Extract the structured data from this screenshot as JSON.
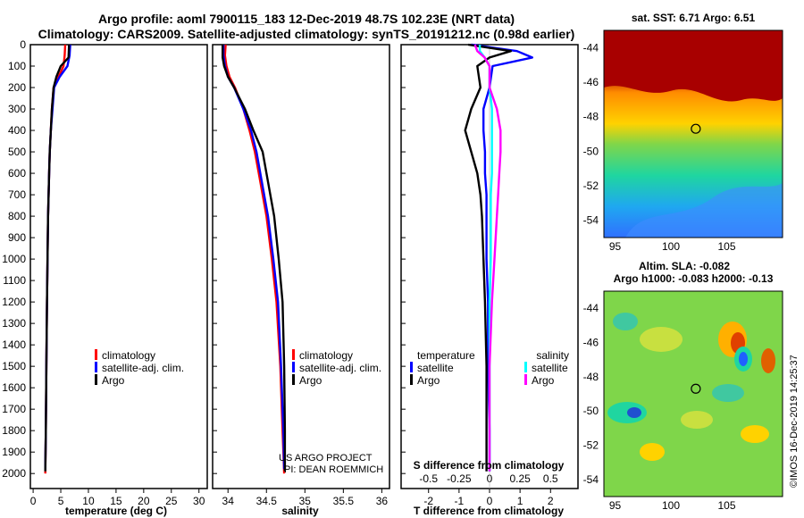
{
  "header": {
    "line1": "Argo profile: aoml 7900115_183 12-Dec-2019 48.7S 102.23E (NRT data)",
    "line2": "Climatology: CARS2009. Satellite-adjusted climatology: synTS_20191212.nc (0.98d earlier)"
  },
  "colors": {
    "climatology": "#ff0000",
    "satellite": "#0000ff",
    "argo": "#000000",
    "sal_satellite": "#00ffff",
    "sal_argo": "#ff00ff"
  },
  "depth_ticks": [
    "0",
    "100",
    "200",
    "300",
    "400",
    "500",
    "600",
    "700",
    "800",
    "900",
    "1000",
    "1100",
    "1200",
    "1300",
    "1400",
    "1500",
    "1600",
    "1700",
    "1800",
    "1900",
    "2000"
  ],
  "chart_data": [
    {
      "type": "line",
      "xlabel": "temperature (deg C)",
      "xlim": [
        -0.5,
        31.5
      ],
      "ylim": [
        2070,
        0
      ],
      "x_ticks": [
        "0",
        "5",
        "10",
        "15",
        "20",
        "25",
        "30"
      ],
      "legend": [
        "climatology",
        "satellite-adj. clim.",
        "Argo"
      ],
      "series": [
        {
          "name": "climatology",
          "color": "#ff0000",
          "x": [
            5.8,
            5.7,
            5.5,
            4.6,
            3.7,
            3.4,
            3.2,
            3.0,
            2.9,
            2.8,
            2.7,
            2.6,
            2.5,
            2.4,
            2.3,
            2.2
          ],
          "y": [
            0,
            50,
            100,
            150,
            200,
            300,
            400,
            500,
            600,
            700,
            800,
            1000,
            1200,
            1500,
            1800,
            2000
          ]
        },
        {
          "name": "satellite-adj. clim.",
          "color": "#0000ff",
          "x": [
            6.7,
            6.6,
            6.2,
            4.8,
            3.8,
            3.5,
            3.2,
            3.0,
            2.9,
            2.8,
            2.7,
            2.6,
            2.5,
            2.4,
            2.3,
            2.2
          ],
          "y": [
            0,
            50,
            100,
            150,
            200,
            300,
            400,
            500,
            600,
            700,
            800,
            1000,
            1200,
            1500,
            1800,
            1980
          ]
        },
        {
          "name": "Argo",
          "color": "#000000",
          "x": [
            6.5,
            6.4,
            5.0,
            4.2,
            3.7,
            3.4,
            3.2,
            3.0,
            2.9,
            2.8,
            2.7,
            2.6,
            2.5,
            2.4,
            2.3,
            2.2
          ],
          "y": [
            0,
            60,
            100,
            150,
            200,
            300,
            400,
            500,
            600,
            700,
            800,
            1000,
            1200,
            1500,
            1800,
            1990
          ]
        }
      ]
    },
    {
      "type": "line",
      "xlabel": "salinity",
      "xlim": [
        33.8,
        36.1
      ],
      "ylim": [
        2070,
        0
      ],
      "x_ticks": [
        "34",
        "34.5",
        "35",
        "35.5",
        "36"
      ],
      "legend": [
        "climatology",
        "satellite-adj. clim.",
        "Argo"
      ],
      "annotation": [
        "US ARGO PROJECT",
        "PI: DEAN ROEMMICH"
      ],
      "series": [
        {
          "name": "climatology",
          "color": "#ff0000",
          "x": [
            33.97,
            33.96,
            33.98,
            34.02,
            34.09,
            34.2,
            34.28,
            34.35,
            34.4,
            34.45,
            34.5,
            34.57,
            34.63,
            34.68,
            34.71,
            34.73
          ],
          "y": [
            0,
            50,
            100,
            150,
            200,
            300,
            400,
            500,
            600,
            700,
            800,
            1000,
            1200,
            1500,
            1800,
            2000
          ]
        },
        {
          "name": "satellite-adj. clim.",
          "color": "#0000ff",
          "x": [
            33.94,
            33.94,
            33.96,
            34.0,
            34.08,
            34.2,
            34.3,
            34.37,
            34.42,
            34.47,
            34.52,
            34.59,
            34.65,
            34.69,
            34.72,
            34.73
          ],
          "y": [
            0,
            50,
            100,
            150,
            200,
            300,
            400,
            500,
            600,
            700,
            800,
            1000,
            1200,
            1500,
            1800,
            1980
          ]
        },
        {
          "name": "Argo",
          "color": "#000000",
          "x": [
            33.93,
            33.93,
            33.95,
            34.0,
            34.08,
            34.22,
            34.33,
            34.45,
            34.5,
            34.55,
            34.6,
            34.66,
            34.71,
            34.73,
            34.74,
            34.74
          ],
          "y": [
            0,
            60,
            100,
            150,
            200,
            300,
            400,
            500,
            600,
            700,
            800,
            1000,
            1200,
            1500,
            1800,
            1990
          ]
        }
      ]
    },
    {
      "type": "line",
      "xlabel": "T difference from climatology",
      "x2label": "S difference from climatology",
      "xlim": [
        -2.9,
        2.9
      ],
      "ylim": [
        2070,
        0
      ],
      "x_ticks": [
        "-2",
        "-1",
        "0",
        "1",
        "2"
      ],
      "x2_ticks": [
        "-0.5",
        "-0.25",
        "0",
        "0.25",
        "0.5"
      ],
      "legend_temperature": {
        "title": "temperature",
        "items": [
          "satellite",
          "Argo"
        ]
      },
      "legend_salinity": {
        "title": "salinity",
        "items": [
          "satellite",
          "Argo"
        ]
      },
      "series": [
        {
          "name": "temperature satellite",
          "color": "#0000ff",
          "x": [
            -0.6,
            0.9,
            1.4,
            0.1,
            0.0,
            -0.2,
            -0.2,
            -0.15,
            -0.15,
            -0.1,
            -0.1,
            -0.1,
            -0.05,
            -0.05,
            0.0,
            0.0
          ],
          "y": [
            0,
            30,
            60,
            100,
            200,
            300,
            400,
            500,
            600,
            700,
            800,
            1000,
            1200,
            1500,
            1800,
            1990
          ]
        },
        {
          "name": "temperature Argo",
          "color": "#000000",
          "x": [
            -0.7,
            0.7,
            0.0,
            -0.4,
            -0.3,
            -0.6,
            -0.8,
            -0.6,
            -0.4,
            -0.3,
            -0.25,
            -0.2,
            -0.15,
            -0.1,
            -0.1,
            -0.1
          ],
          "y": [
            0,
            30,
            60,
            100,
            200,
            300,
            400,
            500,
            600,
            700,
            800,
            1000,
            1200,
            1500,
            1800,
            1990
          ]
        },
        {
          "name": "salinity satellite",
          "color": "#00ffff",
          "x": [
            -0.08,
            -0.08,
            -0.04,
            0.0,
            0.0,
            0.02,
            0.02,
            0.02,
            0.02,
            0.01,
            0.01,
            0.01,
            0.0,
            0.0,
            0.0,
            0.0
          ],
          "y": [
            0,
            30,
            60,
            100,
            200,
            300,
            400,
            500,
            600,
            700,
            800,
            1000,
            1200,
            1500,
            1800,
            1990
          ]
        },
        {
          "name": "salinity Argo",
          "color": "#ff00ff",
          "x": [
            -0.12,
            -0.1,
            -0.04,
            0.0,
            0.0,
            0.06,
            0.09,
            0.09,
            0.08,
            0.07,
            0.06,
            0.04,
            0.02,
            0.0,
            0.0,
            0.0
          ],
          "y": [
            0,
            30,
            60,
            100,
            200,
            300,
            400,
            500,
            600,
            700,
            800,
            1000,
            1200,
            1500,
            1800,
            1990
          ]
        }
      ]
    },
    {
      "type": "heatmap",
      "title": "sat. SST: 6.71 Argo: 6.51",
      "xlim": [
        94,
        110
      ],
      "ylim": [
        -55,
        -43
      ],
      "x_ticks": [
        "95",
        "100",
        "105"
      ],
      "y_ticks": [
        "-44",
        "-46",
        "-48",
        "-50",
        "-52",
        "-54"
      ],
      "marker": {
        "x": 102.23,
        "y": -48.7
      }
    },
    {
      "type": "heatmap",
      "title": "Altim. SLA: -0.082",
      "subtitle": "Argo h1000: -0.083 h2000: -0.13",
      "xlim": [
        94,
        110
      ],
      "ylim": [
        -55,
        -43
      ],
      "x_ticks": [
        "95",
        "100",
        "105"
      ],
      "y_ticks": [
        "-44",
        "-46",
        "-48",
        "-50",
        "-52",
        "-54"
      ],
      "marker": {
        "x": 102.23,
        "y": -48.7
      }
    }
  ],
  "credit": "©IMOS 16-Dec-2019 14:25:37"
}
